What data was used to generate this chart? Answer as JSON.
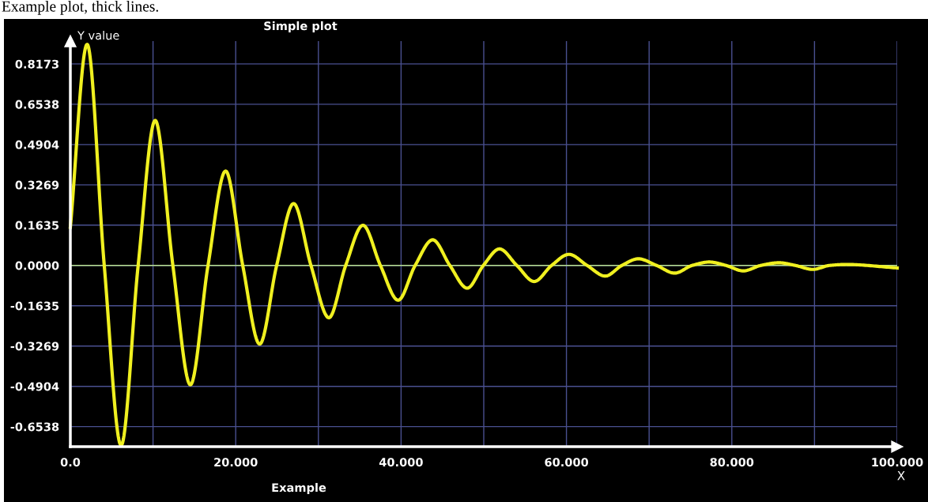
{
  "chart_data": {
    "type": "line",
    "title": "Simple plot",
    "xlabel": "Example",
    "ylabel": "Y value",
    "annotations": [
      "Example plot, thick lines.",
      "X"
    ],
    "x": [
      0,
      2.03,
      4.1,
      6.14,
      8.2,
      10.26,
      12.4,
      14.52,
      16.65,
      18.78,
      20.85,
      22.9,
      24.95,
      27.0,
      29.1,
      31.27,
      33.3,
      35.39,
      37.5,
      39.65,
      41.7,
      43.83,
      45.9,
      48.0,
      49.95,
      51.9,
      54.0,
      56.1,
      58.2,
      60.3,
      62.5,
      64.7,
      66.7,
      68.7,
      70.9,
      73.1,
      75.2,
      77.3,
      79.3,
      81.4,
      83.5,
      85.7,
      87.7,
      89.8,
      91.8,
      93.8,
      100
    ],
    "series": [
      {
        "color": "#f0f020",
        "values": [
          0.155,
          0.897,
          0,
          -0.73,
          0,
          0.588,
          0,
          -0.484,
          0,
          0.383,
          0,
          -0.319,
          0,
          0.251,
          0,
          -0.212,
          0,
          0.163,
          0,
          -0.141,
          0,
          0.104,
          0,
          -0.092,
          0,
          0.067,
          0,
          -0.065,
          0,
          0.045,
          0,
          -0.043,
          0,
          0.027,
          0,
          -0.031,
          0,
          0.014,
          0,
          -0.022,
          0,
          0.011,
          0,
          -0.016,
          0,
          0.004,
          -0.01
        ]
      }
    ],
    "xlim": [
      0,
      100
    ],
    "ylim": [
      -0.735,
      0.91
    ],
    "xticks": [
      {
        "value": 0,
        "label": "0.0"
      },
      {
        "value": 10,
        "label": null
      },
      {
        "value": 20,
        "label": "20.000"
      },
      {
        "value": 30,
        "label": null
      },
      {
        "value": 40,
        "label": "40.000"
      },
      {
        "value": 50,
        "label": null
      },
      {
        "value": 60,
        "label": "60.000"
      },
      {
        "value": 70,
        "label": null
      },
      {
        "value": 80,
        "label": "80.000"
      },
      {
        "value": 90,
        "label": null
      },
      {
        "value": 100,
        "label": "100.000"
      }
    ],
    "yticks": [
      -0.6538,
      -0.4904,
      -0.3269,
      -0.1635,
      {
        "value": 0,
        "label": "0.0000"
      },
      0.1635,
      0.3269,
      0.4904,
      0.6538,
      0.8173
    ],
    "grid": true,
    "ref_lines": [
      {
        "axis": "y",
        "value": 0,
        "color": "#b8e090"
      }
    ]
  }
}
